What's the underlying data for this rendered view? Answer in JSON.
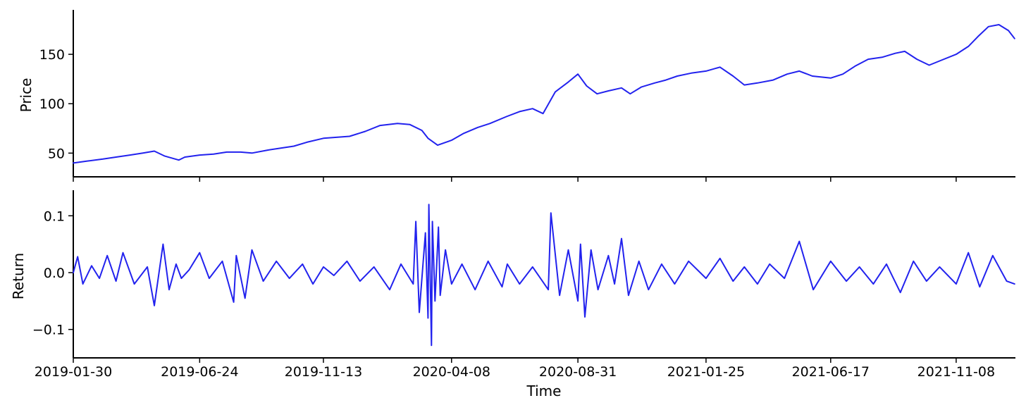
{
  "chart_data": [
    {
      "type": "line",
      "ylabel": "Price",
      "xlabel": "",
      "ylim": [
        26,
        195
      ],
      "yticks": [
        50,
        100,
        150
      ],
      "ytick_labels": [
        "50",
        "100",
        "150"
      ],
      "grid": false,
      "color": "#2222ee",
      "series": [
        {
          "x": [
            "2019-01-30",
            "2019-02-15",
            "2019-03-05",
            "2019-03-20",
            "2019-04-05",
            "2019-04-20",
            "2019-05-03",
            "2019-05-15",
            "2019-05-31",
            "2019-06-07",
            "2019-06-24",
            "2019-07-10",
            "2019-07-25",
            "2019-08-10",
            "2019-08-23",
            "2019-09-10",
            "2019-09-25",
            "2019-10-10",
            "2019-10-25",
            "2019-11-13",
            "2019-11-28",
            "2019-12-13",
            "2019-12-31",
            "2020-01-17",
            "2020-02-06",
            "2020-02-20",
            "2020-03-05",
            "2020-03-12",
            "2020-03-23",
            "2020-04-08",
            "2020-04-22",
            "2020-05-08",
            "2020-05-22",
            "2020-06-10",
            "2020-06-25",
            "2020-07-10",
            "2020-07-22",
            "2020-08-05",
            "2020-08-20",
            "2020-08-31",
            "2020-09-10",
            "2020-09-22",
            "2020-10-05",
            "2020-10-20",
            "2020-10-30",
            "2020-11-12",
            "2020-11-27",
            "2020-12-10",
            "2020-12-23",
            "2021-01-08",
            "2021-01-25",
            "2021-02-10",
            "2021-02-25",
            "2021-03-10",
            "2021-03-25",
            "2021-04-12",
            "2021-04-28",
            "2021-05-12",
            "2021-05-27",
            "2021-06-17",
            "2021-07-01",
            "2021-07-15",
            "2021-07-30",
            "2021-08-15",
            "2021-08-30",
            "2021-09-10",
            "2021-09-24",
            "2021-10-08",
            "2021-10-22",
            "2021-11-08",
            "2021-11-22",
            "2021-12-03",
            "2021-12-15",
            "2021-12-27",
            "2022-01-07",
            "2022-01-14"
          ],
          "y": [
            40,
            42,
            44,
            46,
            48,
            50,
            52,
            47,
            43,
            46,
            48,
            49,
            51,
            51,
            50,
            53,
            55,
            57,
            61,
            65,
            66,
            67,
            72,
            78,
            80,
            79,
            73,
            65,
            58,
            63,
            70,
            76,
            80,
            87,
            92,
            95,
            90,
            112,
            122,
            130,
            118,
            110,
            113,
            116,
            110,
            117,
            121,
            124,
            128,
            131,
            133,
            137,
            128,
            119,
            121,
            124,
            130,
            133,
            128,
            126,
            130,
            138,
            145,
            147,
            151,
            153,
            145,
            139,
            144,
            150,
            158,
            168,
            178,
            180,
            174,
            166
          ]
        }
      ]
    },
    {
      "type": "line",
      "ylabel": "Return",
      "xlabel": "Time",
      "ylim": [
        -0.15,
        0.145
      ],
      "yticks": [
        -0.1,
        0.0,
        0.1
      ],
      "ytick_labels": [
        "−0.1",
        "0.0",
        "0.1"
      ],
      "xticks": [
        "2019-01-30",
        "2019-06-24",
        "2019-11-13",
        "2020-04-08",
        "2020-08-31",
        "2021-01-25",
        "2021-06-17",
        "2021-11-08"
      ],
      "xlim": [
        "2019-01-30",
        "2022-01-15"
      ],
      "grid": false,
      "color": "#2222ee",
      "series": [
        {
          "x": [
            "2019-01-30",
            "2019-02-04",
            "2019-02-10",
            "2019-02-20",
            "2019-03-01",
            "2019-03-10",
            "2019-03-20",
            "2019-03-28",
            "2019-04-10",
            "2019-04-25",
            "2019-05-03",
            "2019-05-13",
            "2019-05-20",
            "2019-05-28",
            "2019-06-03",
            "2019-06-12",
            "2019-06-24",
            "2019-07-05",
            "2019-07-20",
            "2019-08-02",
            "2019-08-05",
            "2019-08-15",
            "2019-08-23",
            "2019-09-05",
            "2019-09-20",
            "2019-10-05",
            "2019-10-20",
            "2019-11-01",
            "2019-11-13",
            "2019-11-25",
            "2019-12-10",
            "2019-12-25",
            "2020-01-10",
            "2020-01-28",
            "2020-02-10",
            "2020-02-24",
            "2020-02-27",
            "2020-03-02",
            "2020-03-09",
            "2020-03-12",
            "2020-03-13",
            "2020-03-16",
            "2020-03-17",
            "2020-03-20",
            "2020-03-24",
            "2020-03-26",
            "2020-04-01",
            "2020-04-08",
            "2020-04-20",
            "2020-05-05",
            "2020-05-20",
            "2020-06-05",
            "2020-06-11",
            "2020-06-25",
            "2020-07-10",
            "2020-07-28",
            "2020-07-31",
            "2020-08-10",
            "2020-08-20",
            "2020-08-31",
            "2020-09-03",
            "2020-09-08",
            "2020-09-15",
            "2020-09-23",
            "2020-10-05",
            "2020-10-12",
            "2020-10-20",
            "2020-10-28",
            "2020-11-09",
            "2020-11-20",
            "2020-12-05",
            "2020-12-20",
            "2021-01-05",
            "2021-01-25",
            "2021-02-10",
            "2021-02-25",
            "2021-03-10",
            "2021-03-25",
            "2021-04-08",
            "2021-04-25",
            "2021-05-12",
            "2021-05-28",
            "2021-06-17",
            "2021-07-05",
            "2021-07-20",
            "2021-08-05",
            "2021-08-20",
            "2021-09-05",
            "2021-09-20",
            "2021-10-05",
            "2021-10-20",
            "2021-11-08",
            "2021-11-22",
            "2021-12-05",
            "2021-12-20",
            "2022-01-05",
            "2022-01-14"
          ],
          "y": [
            0.0,
            0.028,
            -0.02,
            0.012,
            -0.01,
            0.03,
            -0.015,
            0.035,
            -0.02,
            0.01,
            -0.058,
            0.05,
            -0.03,
            0.015,
            -0.01,
            0.005,
            0.035,
            -0.01,
            0.02,
            -0.052,
            0.03,
            -0.045,
            0.04,
            -0.015,
            0.02,
            -0.01,
            0.015,
            -0.02,
            0.01,
            -0.005,
            0.02,
            -0.015,
            0.01,
            -0.03,
            0.015,
            -0.02,
            0.09,
            -0.07,
            0.07,
            -0.08,
            0.12,
            -0.128,
            0.09,
            -0.05,
            0.08,
            -0.04,
            0.04,
            -0.02,
            0.015,
            -0.03,
            0.02,
            -0.025,
            0.015,
            -0.02,
            0.01,
            -0.03,
            0.105,
            -0.04,
            0.04,
            -0.05,
            0.05,
            -0.078,
            0.04,
            -0.03,
            0.03,
            -0.02,
            0.06,
            -0.04,
            0.02,
            -0.03,
            0.015,
            -0.02,
            0.02,
            -0.01,
            0.025,
            -0.015,
            0.01,
            -0.02,
            0.015,
            -0.01,
            0.055,
            -0.03,
            0.02,
            -0.015,
            0.01,
            -0.02,
            0.015,
            -0.035,
            0.02,
            -0.015,
            0.01,
            -0.02,
            0.035,
            -0.025,
            0.03,
            -0.015,
            -0.02
          ]
        }
      ]
    }
  ]
}
